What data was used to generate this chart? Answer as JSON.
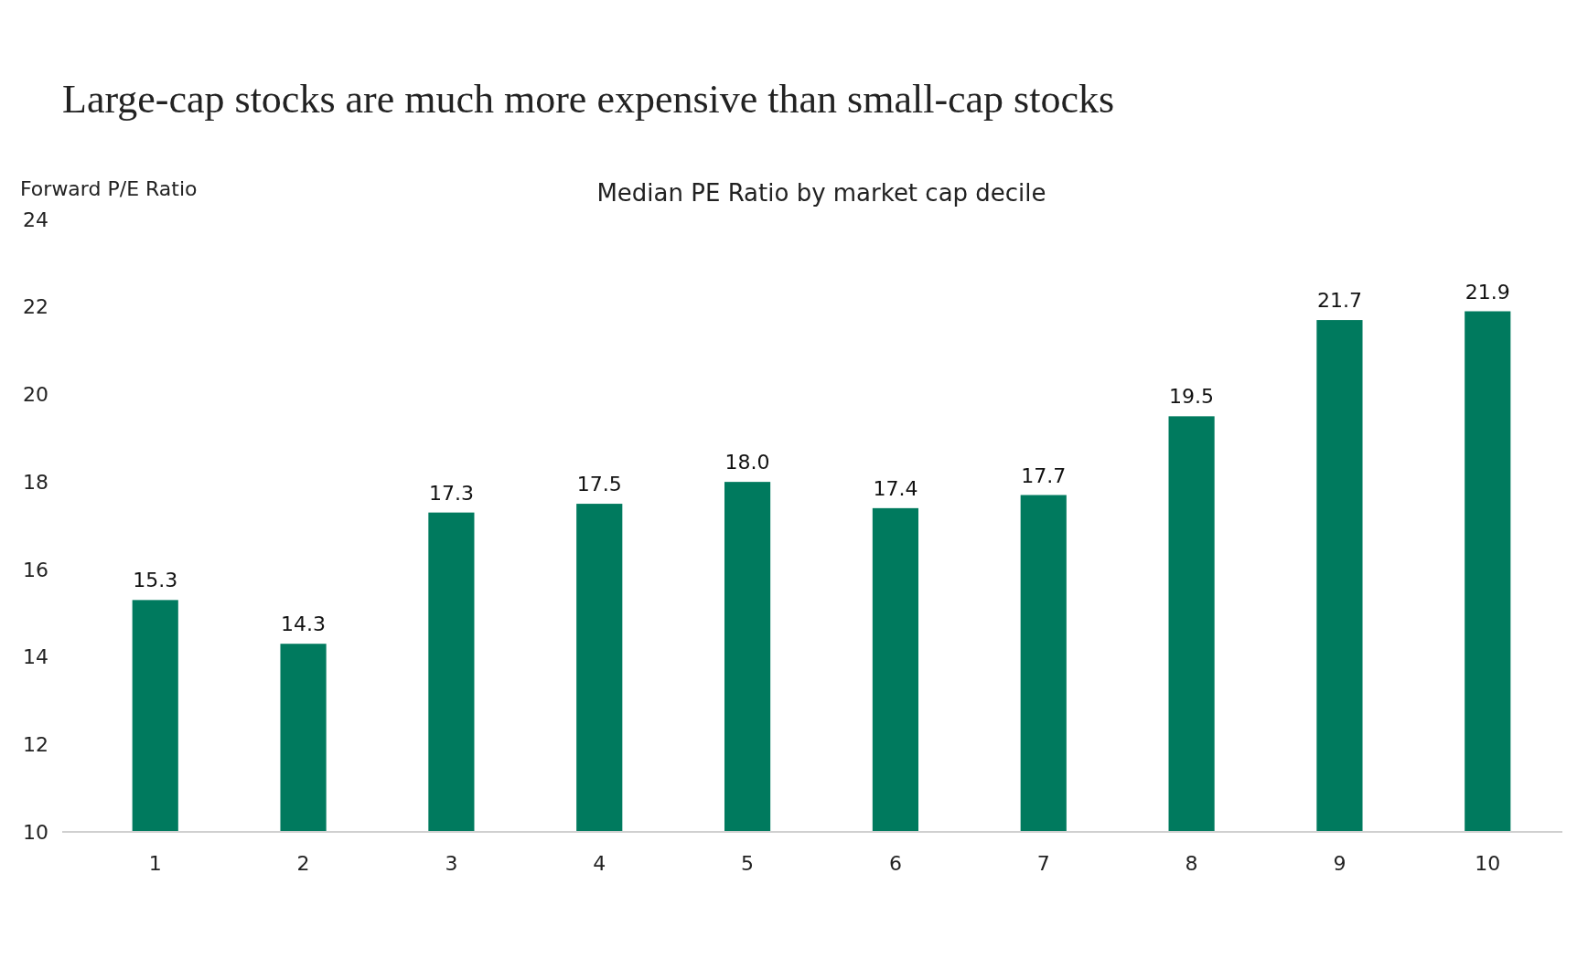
{
  "chart_data": {
    "type": "bar",
    "title": "Large-cap stocks are much more expensive than small-cap stocks",
    "subtitle": "Median PE Ratio by market cap decile",
    "ylabel": "Forward P/E Ratio",
    "categories": [
      "1",
      "2",
      "3",
      "4",
      "5",
      "6",
      "7",
      "8",
      "9",
      "10"
    ],
    "values": [
      15.3,
      14.3,
      17.3,
      17.5,
      18.0,
      17.4,
      17.7,
      19.5,
      21.7,
      21.9
    ],
    "value_labels": [
      "15.3",
      "14.3",
      "17.3",
      "17.5",
      "18.0",
      "17.4",
      "17.7",
      "19.5",
      "21.7",
      "21.9"
    ],
    "color": "#007a5e",
    "ylim": [
      10,
      24
    ],
    "yticks": [
      10,
      12,
      14,
      16,
      18,
      20,
      22,
      24
    ],
    "grid": false
  }
}
